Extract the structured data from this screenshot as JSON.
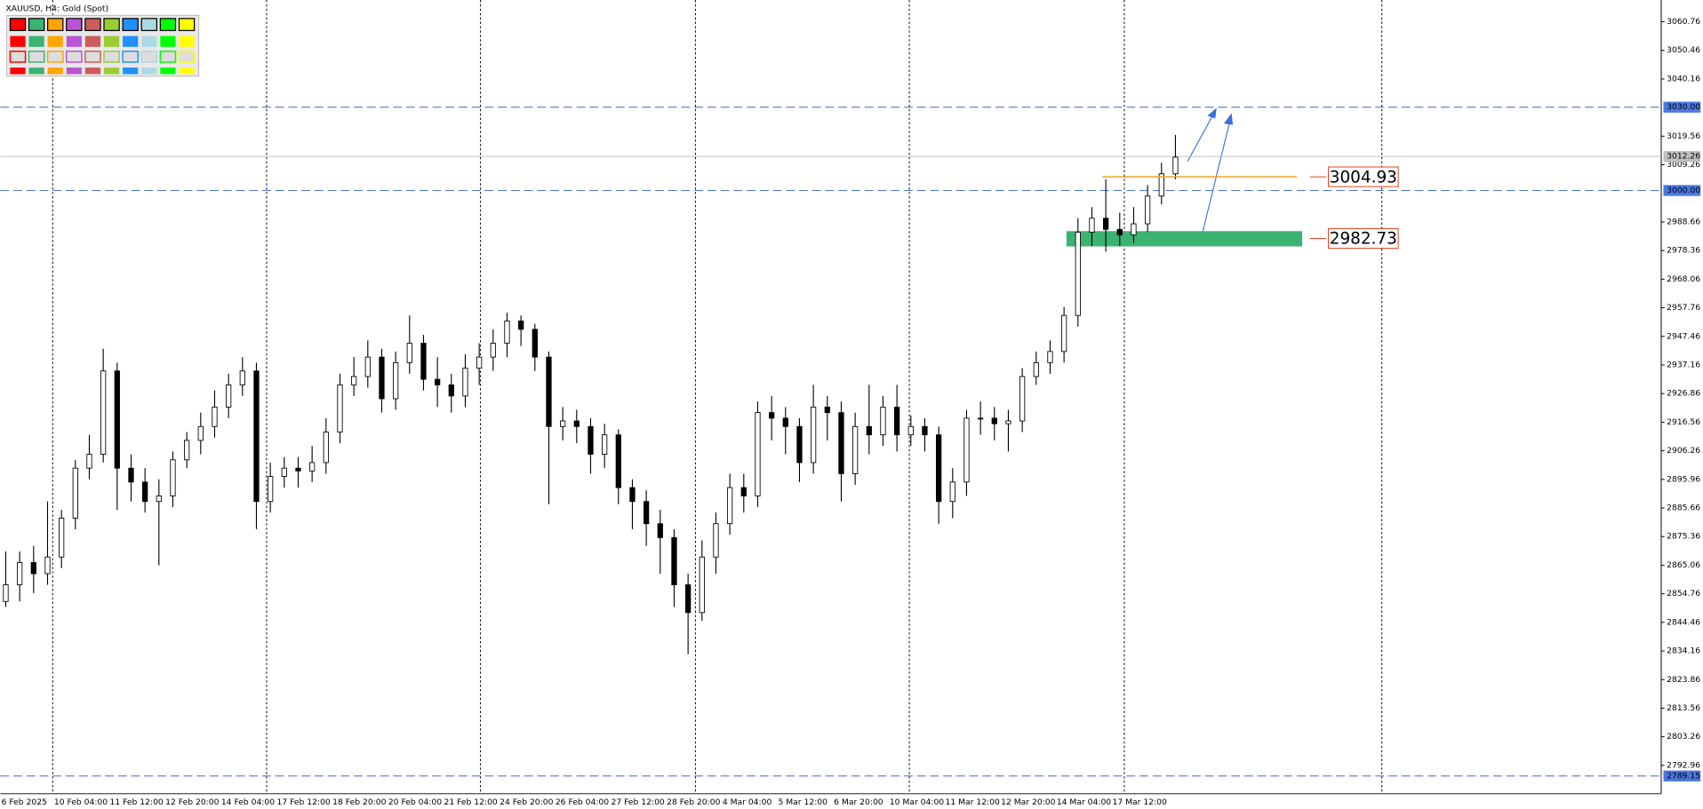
{
  "chart_data": {
    "type": "candlestick",
    "title": "XAUUSD, H4:  Gold (Spot)",
    "categories": [
      "6 Feb 2025",
      null,
      null,
      "10 Feb 04:00",
      null,
      null,
      null,
      "11 Feb 12:00",
      null,
      null,
      null,
      "12 Feb 20:00",
      null,
      null,
      null,
      "14 Feb 04:00",
      null,
      null,
      null,
      "17 Feb 12:00",
      null,
      null,
      null,
      "18 Feb 20:00",
      null,
      null,
      null,
      "20 Feb 04:00",
      null,
      null,
      null,
      "21 Feb 12:00",
      null,
      null,
      null,
      "24 Feb 20:00",
      null,
      null,
      null,
      "26 Feb 04:00",
      null,
      null,
      null,
      "27 Feb 12:00",
      null,
      null,
      null,
      "28 Feb 20:00",
      null,
      null,
      null,
      "4 Mar 04:00",
      null,
      null,
      null,
      "5 Mar 12:00",
      null,
      null,
      null,
      "6 Mar 20:00",
      null,
      null,
      null,
      "10 Mar 04:00",
      null,
      null,
      null,
      "11 Mar 12:00",
      null,
      null,
      null,
      "12 Mar 20:00",
      null,
      null,
      null,
      "14 Mar 04:00",
      null,
      null,
      null,
      "17 Mar 12:00",
      null,
      null,
      null,
      null,
      null
    ],
    "open": [
      2852,
      2858,
      2866,
      2862,
      2868,
      2882,
      2900,
      2905,
      2935,
      2900,
      2895,
      2888,
      2890,
      2903,
      2910,
      2915,
      2922,
      2930,
      2935,
      2888,
      2897,
      2900,
      2899,
      2902,
      2913,
      2930,
      2933,
      2940,
      2925,
      2938,
      2945,
      2932,
      2930,
      2926,
      2936,
      2940,
      2945,
      2953,
      2950,
      2940,
      2915,
      2917,
      2915,
      2905,
      2912,
      2893,
      2888,
      2880,
      2875,
      2858,
      2848,
      2868,
      2880,
      2893,
      2890,
      2920,
      2918,
      2915,
      2902,
      2922,
      2920,
      2898,
      2915,
      2912,
      2922,
      2912,
      2915,
      2912,
      2888,
      2895,
      2918,
      2918,
      2916,
      2917,
      2933,
      2938,
      2942,
      2955,
      2985,
      2990,
      2986,
      2984,
      2988,
      2998,
      3006
    ],
    "high": [
      2870,
      2870,
      2872,
      2888,
      2885,
      2903,
      2912,
      2943,
      2938,
      2905,
      2900,
      2896,
      2906,
      2913,
      2920,
      2928,
      2934,
      2940,
      2938,
      2902,
      2904,
      2904,
      2908,
      2918,
      2934,
      2940,
      2946,
      2943,
      2942,
      2955,
      2948,
      2940,
      2934,
      2941,
      2945,
      2950,
      2956,
      2955,
      2952,
      2942,
      2922,
      2921,
      2918,
      2916,
      2914,
      2896,
      2892,
      2885,
      2878,
      2862,
      2874,
      2884,
      2898,
      2898,
      2924,
      2926,
      2922,
      2918,
      2930,
      2926,
      2924,
      2920,
      2930,
      2926,
      2930,
      2919,
      2918,
      2915,
      2900,
      2921,
      2924,
      2922,
      2921,
      2936,
      2942,
      2946,
      2958,
      2990,
      2994,
      3004,
      2992,
      2994,
      3002,
      3010,
      3020
    ],
    "low": [
      2850,
      2852,
      2855,
      2858,
      2864,
      2878,
      2896,
      2902,
      2885,
      2888,
      2884,
      2865,
      2886,
      2900,
      2905,
      2911,
      2918,
      2926,
      2878,
      2884,
      2893,
      2893,
      2895,
      2898,
      2909,
      2926,
      2929,
      2920,
      2921,
      2934,
      2928,
      2922,
      2920,
      2922,
      2930,
      2935,
      2940,
      2944,
      2935,
      2887,
      2910,
      2909,
      2898,
      2900,
      2887,
      2878,
      2872,
      2862,
      2850,
      2833,
      2845,
      2862,
      2876,
      2884,
      2886,
      2910,
      2905,
      2895,
      2898,
      2910,
      2888,
      2894,
      2905,
      2908,
      2906,
      2908,
      2906,
      2880,
      2882,
      2890,
      2912,
      2910,
      2906,
      2913,
      2930,
      2934,
      2938,
      2951,
      2980,
      2978,
      2980,
      2981,
      2985,
      2995,
      3004
    ],
    "close": [
      2858,
      2866,
      2862,
      2868,
      2882,
      2900,
      2905,
      2935,
      2900,
      2895,
      2888,
      2890,
      2903,
      2910,
      2915,
      2922,
      2930,
      2935,
      2888,
      2897,
      2900,
      2899,
      2902,
      2913,
      2930,
      2933,
      2940,
      2925,
      2938,
      2945,
      2932,
      2930,
      2926,
      2936,
      2940,
      2945,
      2953,
      2950,
      2940,
      2915,
      2917,
      2915,
      2905,
      2912,
      2893,
      2888,
      2880,
      2875,
      2858,
      2848,
      2868,
      2880,
      2893,
      2890,
      2920,
      2918,
      2915,
      2902,
      2922,
      2920,
      2898,
      2915,
      2912,
      2922,
      2912,
      2915,
      2912,
      2888,
      2895,
      2918,
      2918,
      2916,
      2917,
      2933,
      2938,
      2942,
      2955,
      2985,
      2990,
      2986,
      2984,
      2988,
      2998,
      3006,
      3012
    ],
    "up_color": "#ffffff",
    "down_color": "#000000",
    "ylim": [
      2782.75,
      3068.6
    ],
    "yticks": [
      3060.76,
      3050.46,
      3040.16,
      3019.56,
      3009.26,
      2988.66,
      2978.36,
      2968.06,
      2957.76,
      2947.46,
      2937.16,
      2926.86,
      2916.56,
      2906.26,
      2895.96,
      2885.66,
      2875.36,
      2865.06,
      2854.76,
      2844.46,
      2834.16,
      2823.86,
      2813.56,
      2803.26,
      2792.96
    ],
    "hlines": [
      {
        "value": 3030,
        "label": "3030.00"
      },
      {
        "value": 3000,
        "label": "3000.00"
      },
      2789.15
    ],
    "hline_color": "#4a78e0",
    "current_price": 3012.26,
    "resistance": 3004.93,
    "resistance_color": "#f0a020",
    "support": 2982.73,
    "support_zone": [
      2979.86,
      2985.36
    ],
    "support_color": "#3cb371",
    "level_label_color": "#e8401c"
  }
}
